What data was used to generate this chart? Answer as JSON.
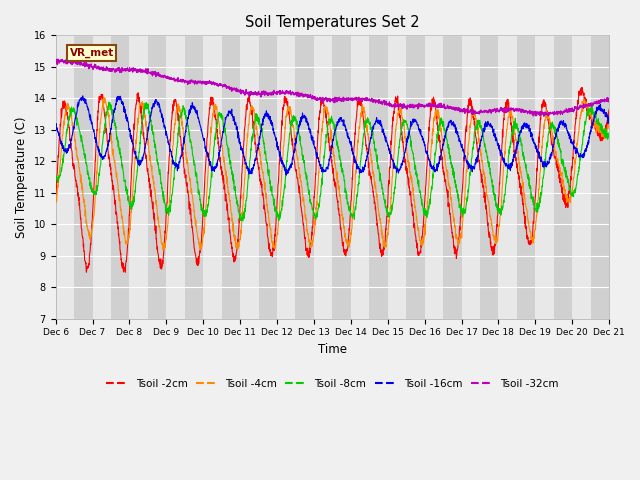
{
  "title": "Soil Temperatures Set 2",
  "xlabel": "Time",
  "ylabel": "Soil Temperature (C)",
  "ylim": [
    7.0,
    16.0
  ],
  "yticks": [
    7.0,
    8.0,
    9.0,
    10.0,
    11.0,
    12.0,
    13.0,
    14.0,
    15.0,
    16.0
  ],
  "xtick_labels": [
    "Dec 6",
    "Dec 7",
    "Dec 8",
    "Dec 9",
    "Dec 10",
    "Dec 11",
    "Dec 12",
    "Dec 13",
    "Dec 14",
    "Dec 15",
    "Dec 16",
    "Dec 17",
    "Dec 18",
    "Dec 19",
    "Dec 20",
    "Dec 21"
  ],
  "colors": {
    "Tsoil_2cm": "#ff0000",
    "Tsoil_4cm": "#ff8800",
    "Tsoil_8cm": "#00cc00",
    "Tsoil_16cm": "#0000ee",
    "Tsoil_32cm": "#bb00bb"
  },
  "legend_labels": [
    "Tsoil -2cm",
    "Tsoil -4cm",
    "Tsoil -8cm",
    "Tsoil -16cm",
    "Tsoil -32cm"
  ],
  "vr_met_box_color": "#ffffcc",
  "vr_met_border_color": "#8b4513",
  "background_color": "#f0f0f0",
  "plot_bg_color": "#e0e0e0",
  "band_light": "#e8e8e8",
  "band_dark": "#d0d0d0",
  "grid_color": "#ffffff",
  "total_days": 15,
  "n_per_day": 144
}
